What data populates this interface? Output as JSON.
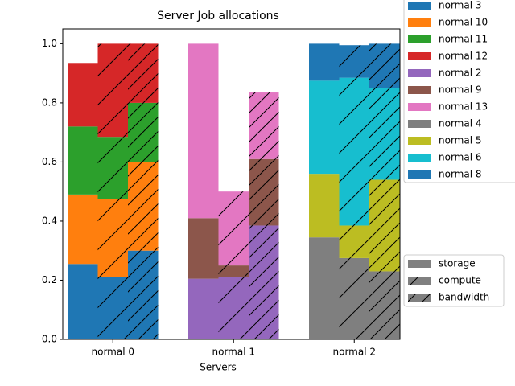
{
  "chart_data": {
    "type": "grouped-stacked-bar",
    "title": "Server Job allocations",
    "x_label": "Servers",
    "categories": [
      "normal 0",
      "normal 1",
      "normal 2"
    ],
    "resources": [
      "storage",
      "compute",
      "bandwidth"
    ],
    "ylim": [
      0,
      1.05
    ],
    "yticks": [
      {
        "value": 0,
        "label": "0.0"
      },
      0.2,
      0.4,
      0.6,
      0.8,
      {
        "value": 1,
        "label": "1.0"
      }
    ],
    "series": [
      {
        "name": "normal 3",
        "color": "#1f77b4",
        "values": [
          [
            0.255,
            0.21,
            0.3
          ],
          null,
          null
        ]
      },
      {
        "name": "normal 10",
        "color": "#ff7f0e",
        "values": [
          [
            0.235,
            0.265,
            0.3
          ],
          null,
          null
        ]
      },
      {
        "name": "normal 11",
        "color": "#2ca02c",
        "values": [
          [
            0.23,
            0.21,
            0.2
          ],
          null,
          null
        ]
      },
      {
        "name": "normal 12",
        "color": "#d62728",
        "values": [
          [
            0.215,
            0.315,
            0.2
          ],
          null,
          null
        ]
      },
      {
        "name": "normal 2",
        "color": "#9467bd",
        "values": [
          null,
          [
            0.205,
            0.21,
            0.385
          ],
          null
        ]
      },
      {
        "name": "normal 9",
        "color": "#8c564b",
        "values": [
          null,
          [
            0.205,
            0.04,
            0.225
          ],
          null
        ]
      },
      {
        "name": "normal 13",
        "color": "#e377c2",
        "values": [
          null,
          [
            0.59,
            0.25,
            0.225
          ],
          null
        ]
      },
      {
        "name": "normal 4",
        "color": "#7f7f7f",
        "values": [
          null,
          null,
          [
            0.345,
            0.275,
            0.23
          ]
        ]
      },
      {
        "name": "normal 5",
        "color": "#bcbd22",
        "values": [
          null,
          null,
          [
            0.215,
            0.11,
            0.31
          ]
        ]
      },
      {
        "name": "normal 6",
        "color": "#17becf",
        "values": [
          null,
          null,
          [
            0.315,
            0.5,
            0.31
          ]
        ]
      },
      {
        "name": "normal 8",
        "color": "#1f77b4",
        "values": [
          null,
          null,
          [
            0.125,
            0.11,
            0.15
          ]
        ]
      }
    ],
    "resource_color": "#808080"
  }
}
